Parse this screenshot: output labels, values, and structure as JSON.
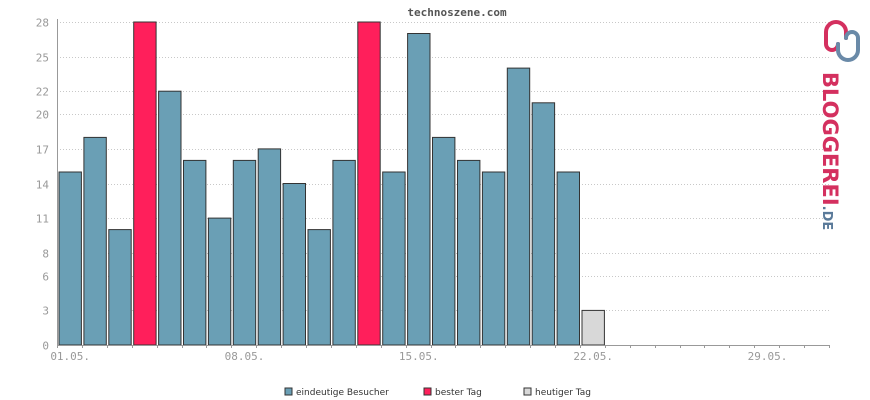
{
  "chart_data": {
    "type": "bar",
    "title": "technoszene.com",
    "x_tick_labels": [
      "01.05.",
      "08.05.",
      "15.05.",
      "22.05.",
      "29.05."
    ],
    "x_tick_days": [
      1,
      8,
      15,
      22,
      29
    ],
    "days_in_range": 31,
    "y_ticks": [
      0,
      3,
      6,
      8,
      11,
      14,
      17,
      20,
      22,
      25,
      28
    ],
    "ylim": [
      0,
      28
    ],
    "values": [
      15,
      18,
      10,
      28,
      22,
      16,
      11,
      16,
      17,
      14,
      10,
      16,
      28,
      15,
      27,
      18,
      16,
      15,
      24,
      21,
      15,
      3
    ],
    "value_series": [
      "visitors",
      "visitors",
      "visitors",
      "best",
      "visitors",
      "visitors",
      "visitors",
      "visitors",
      "visitors",
      "visitors",
      "visitors",
      "visitors",
      "best",
      "visitors",
      "visitors",
      "visitors",
      "visitors",
      "visitors",
      "visitors",
      "visitors",
      "visitors",
      "today"
    ],
    "legend": [
      {
        "key": "visitors",
        "label": "eindeutige Besucher",
        "color": "#6a9fb5"
      },
      {
        "key": "best",
        "label": "bester Tag",
        "color": "#ff1f5b"
      },
      {
        "key": "today",
        "label": "heutiger Tag",
        "color": "#d8d8d8"
      }
    ],
    "legend_position": "bottom",
    "grid": true
  },
  "watermark": {
    "text_main": "BLOGGEREI",
    "text_suffix": ".DE",
    "color_main": "#d4305f",
    "color_suffix": "#5a7a9a"
  }
}
